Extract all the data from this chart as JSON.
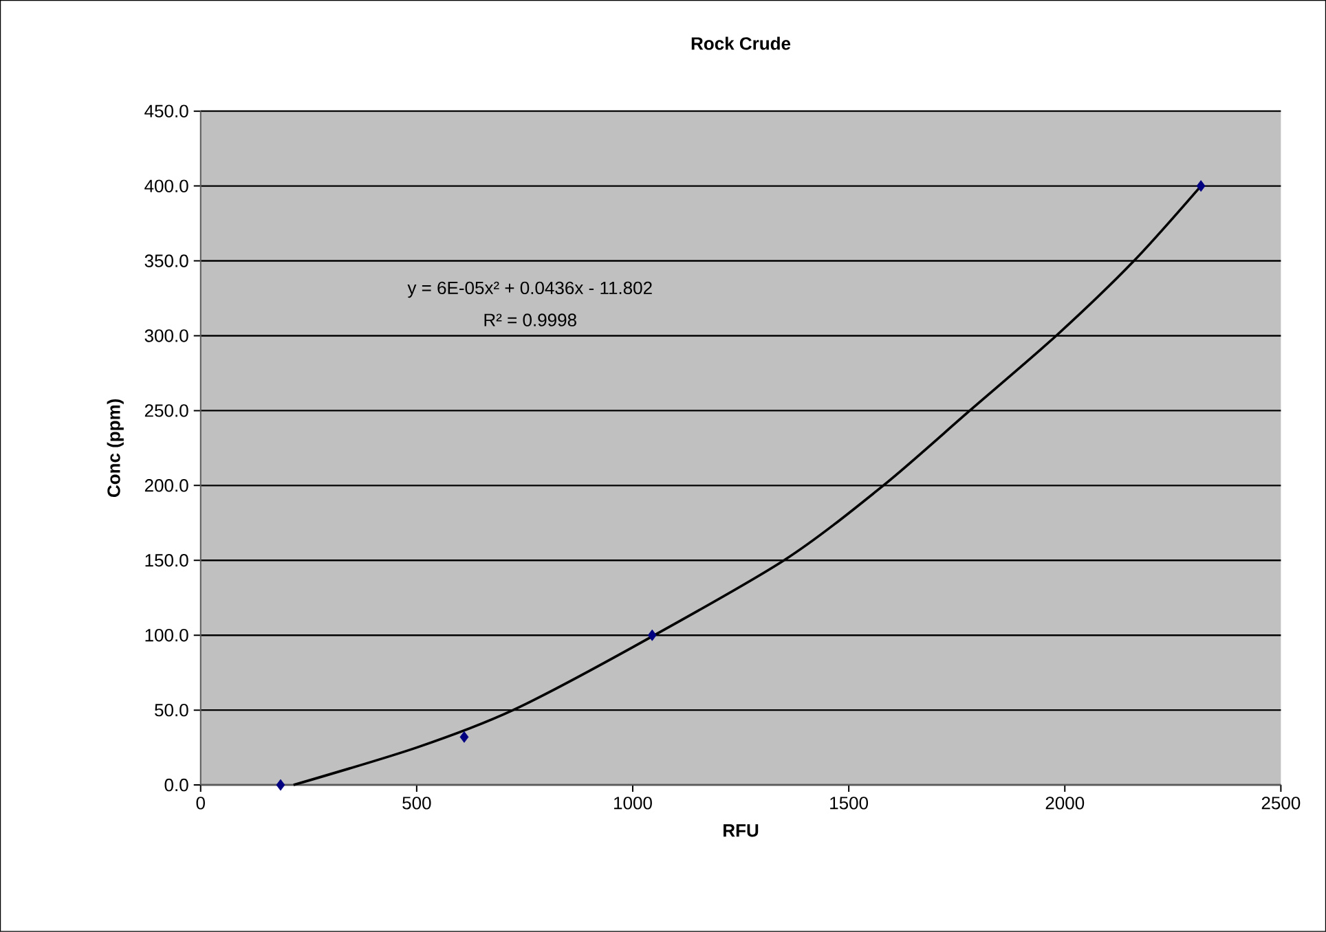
{
  "chart_data": {
    "type": "scatter",
    "title": "Rock Crude",
    "xlabel": "RFU",
    "ylabel": "Conc (ppm)",
    "xlim": [
      0,
      2500
    ],
    "xticks": [
      0,
      500,
      1000,
      1500,
      2000,
      2500
    ],
    "ylim": [
      0,
      450
    ],
    "yticks": [
      {
        "value": 0,
        "label": "0.0"
      },
      {
        "value": 50,
        "label": "50.0"
      },
      {
        "value": 100,
        "label": "100.0"
      },
      {
        "value": 150,
        "label": "150.0"
      },
      {
        "value": 200,
        "label": "200.0"
      },
      {
        "value": 250,
        "label": "250.0"
      },
      {
        "value": 300,
        "label": "300.0"
      },
      {
        "value": 350,
        "label": "350.0"
      },
      {
        "value": 400,
        "label": "400.0"
      },
      {
        "value": 450,
        "label": "450.0"
      }
    ],
    "grid": "y",
    "marker": "diamond",
    "series": [
      {
        "color": "#000080",
        "x": [
          185,
          610,
          1045,
          2315
        ],
        "values": [
          0,
          32,
          100,
          400
        ]
      },
      {
        "type": "line",
        "color": "#000000",
        "marker": "none",
        "line_style": "solid",
        "x": [
          215,
          500,
          723,
          1000,
          1350,
          1580,
          1780,
          1980,
          2160,
          2315
        ],
        "values": [
          0,
          25,
          50,
          92,
          150,
          200,
          250,
          300,
          350,
          400
        ]
      }
    ],
    "annotations": [
      "y = 6E-05x² + 0.0436x - 11.802",
      "R² = 0.9998"
    ]
  }
}
